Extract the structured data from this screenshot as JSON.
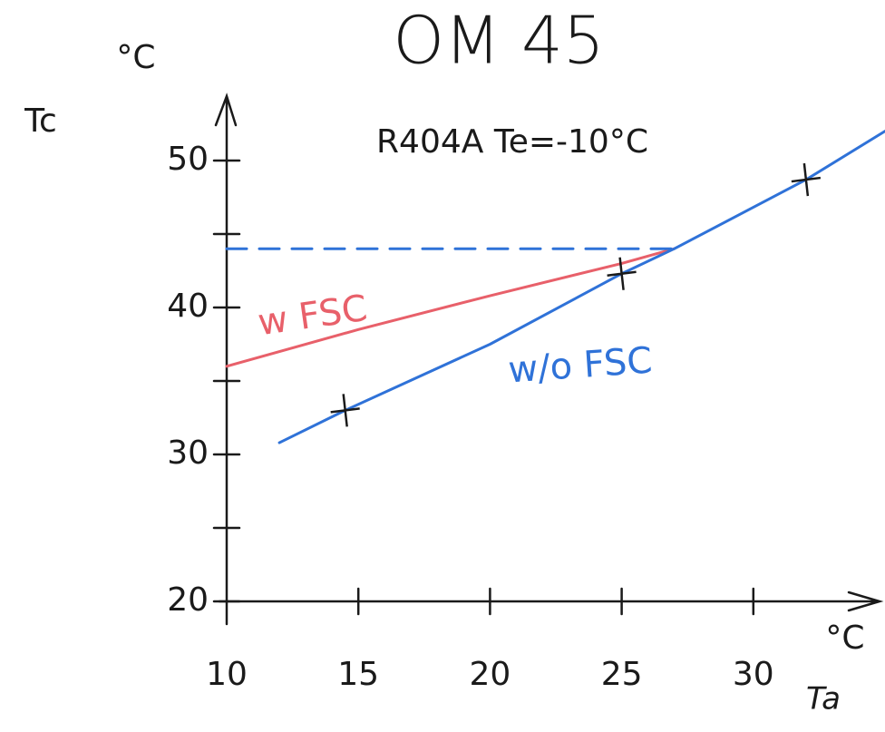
{
  "chart_data": {
    "type": "line",
    "title": "OM 45",
    "subtitle": "R404A  Te=-10°C",
    "y_unit": "°C",
    "y_label": "Tc",
    "x_unit": "°C",
    "x_label": "Ta",
    "xlim": [
      10,
      35
    ],
    "ylim": [
      20,
      55
    ],
    "xticks": [
      10,
      15,
      20,
      25,
      30
    ],
    "yticks": [
      20,
      30,
      40,
      50
    ],
    "yminor_ticks": [
      25,
      35,
      45
    ],
    "series": [
      {
        "name": "w FSC",
        "color": "#e8606a",
        "style": "solid",
        "x": [
          10,
          15,
          20,
          25,
          27
        ],
        "values": [
          36,
          38.5,
          40.8,
          43,
          44
        ]
      },
      {
        "name": "w/o FSC",
        "color": "#2f72d8",
        "style": "solid",
        "x": [
          12,
          14.5,
          20,
          25,
          27,
          32,
          35
        ],
        "values": [
          30.8,
          33,
          37.5,
          42.3,
          44,
          48.7,
          52
        ]
      },
      {
        "color": "#2f72d8",
        "style": "dashed",
        "x": [
          10,
          27
        ],
        "values": [
          44,
          44
        ]
      },
      {
        "color": "#1a1a1a",
        "style": "markers",
        "marker": "+",
        "x": [
          14.5,
          25,
          32
        ],
        "values": [
          33,
          42.3,
          48.7
        ]
      }
    ]
  }
}
